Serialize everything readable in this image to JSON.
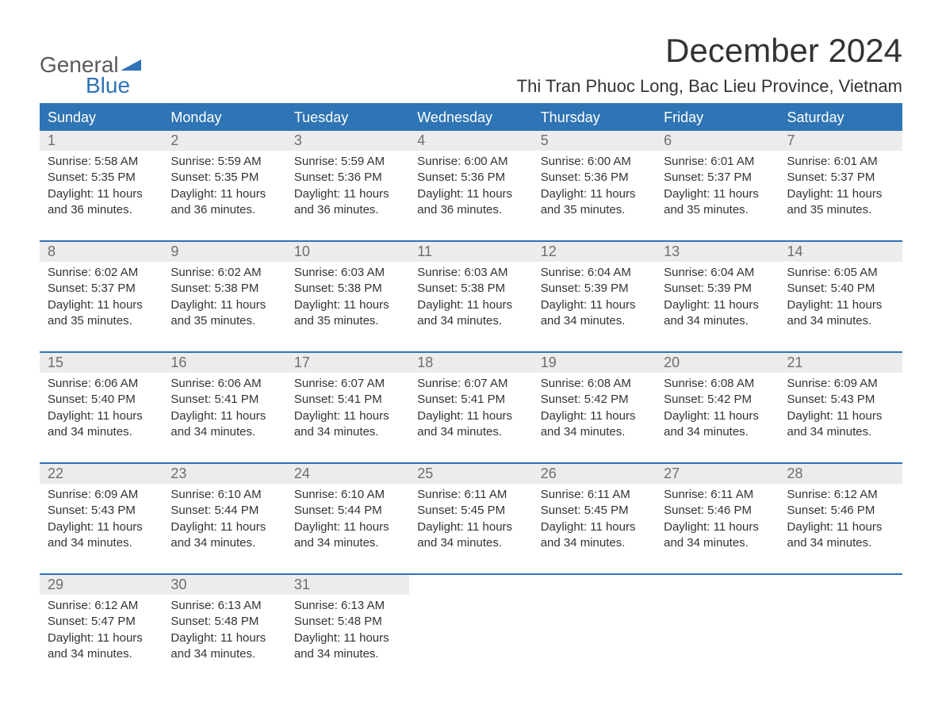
{
  "logo": {
    "word1": "General",
    "word2": "Blue",
    "flag_color": "#2f74b5"
  },
  "title": "December 2024",
  "location": "Thi Tran Phuoc Long, Bac Lieu Province, Vietnam",
  "header_bg": "#2f74b5",
  "header_fg": "#ffffff",
  "daynum_bg": "#ececec",
  "daynum_fg": "#6e6e6e",
  "text_color": "#333333",
  "days_of_week": [
    "Sunday",
    "Monday",
    "Tuesday",
    "Wednesday",
    "Thursday",
    "Friday",
    "Saturday"
  ],
  "weeks": [
    [
      {
        "n": "1",
        "sr": "5:58 AM",
        "ss": "5:35 PM",
        "dl": "11 hours and 36 minutes."
      },
      {
        "n": "2",
        "sr": "5:59 AM",
        "ss": "5:35 PM",
        "dl": "11 hours and 36 minutes."
      },
      {
        "n": "3",
        "sr": "5:59 AM",
        "ss": "5:36 PM",
        "dl": "11 hours and 36 minutes."
      },
      {
        "n": "4",
        "sr": "6:00 AM",
        "ss": "5:36 PM",
        "dl": "11 hours and 36 minutes."
      },
      {
        "n": "5",
        "sr": "6:00 AM",
        "ss": "5:36 PM",
        "dl": "11 hours and 35 minutes."
      },
      {
        "n": "6",
        "sr": "6:01 AM",
        "ss": "5:37 PM",
        "dl": "11 hours and 35 minutes."
      },
      {
        "n": "7",
        "sr": "6:01 AM",
        "ss": "5:37 PM",
        "dl": "11 hours and 35 minutes."
      }
    ],
    [
      {
        "n": "8",
        "sr": "6:02 AM",
        "ss": "5:37 PM",
        "dl": "11 hours and 35 minutes."
      },
      {
        "n": "9",
        "sr": "6:02 AM",
        "ss": "5:38 PM",
        "dl": "11 hours and 35 minutes."
      },
      {
        "n": "10",
        "sr": "6:03 AM",
        "ss": "5:38 PM",
        "dl": "11 hours and 35 minutes."
      },
      {
        "n": "11",
        "sr": "6:03 AM",
        "ss": "5:38 PM",
        "dl": "11 hours and 34 minutes."
      },
      {
        "n": "12",
        "sr": "6:04 AM",
        "ss": "5:39 PM",
        "dl": "11 hours and 34 minutes."
      },
      {
        "n": "13",
        "sr": "6:04 AM",
        "ss": "5:39 PM",
        "dl": "11 hours and 34 minutes."
      },
      {
        "n": "14",
        "sr": "6:05 AM",
        "ss": "5:40 PM",
        "dl": "11 hours and 34 minutes."
      }
    ],
    [
      {
        "n": "15",
        "sr": "6:06 AM",
        "ss": "5:40 PM",
        "dl": "11 hours and 34 minutes."
      },
      {
        "n": "16",
        "sr": "6:06 AM",
        "ss": "5:41 PM",
        "dl": "11 hours and 34 minutes."
      },
      {
        "n": "17",
        "sr": "6:07 AM",
        "ss": "5:41 PM",
        "dl": "11 hours and 34 minutes."
      },
      {
        "n": "18",
        "sr": "6:07 AM",
        "ss": "5:41 PM",
        "dl": "11 hours and 34 minutes."
      },
      {
        "n": "19",
        "sr": "6:08 AM",
        "ss": "5:42 PM",
        "dl": "11 hours and 34 minutes."
      },
      {
        "n": "20",
        "sr": "6:08 AM",
        "ss": "5:42 PM",
        "dl": "11 hours and 34 minutes."
      },
      {
        "n": "21",
        "sr": "6:09 AM",
        "ss": "5:43 PM",
        "dl": "11 hours and 34 minutes."
      }
    ],
    [
      {
        "n": "22",
        "sr": "6:09 AM",
        "ss": "5:43 PM",
        "dl": "11 hours and 34 minutes."
      },
      {
        "n": "23",
        "sr": "6:10 AM",
        "ss": "5:44 PM",
        "dl": "11 hours and 34 minutes."
      },
      {
        "n": "24",
        "sr": "6:10 AM",
        "ss": "5:44 PM",
        "dl": "11 hours and 34 minutes."
      },
      {
        "n": "25",
        "sr": "6:11 AM",
        "ss": "5:45 PM",
        "dl": "11 hours and 34 minutes."
      },
      {
        "n": "26",
        "sr": "6:11 AM",
        "ss": "5:45 PM",
        "dl": "11 hours and 34 minutes."
      },
      {
        "n": "27",
        "sr": "6:11 AM",
        "ss": "5:46 PM",
        "dl": "11 hours and 34 minutes."
      },
      {
        "n": "28",
        "sr": "6:12 AM",
        "ss": "5:46 PM",
        "dl": "11 hours and 34 minutes."
      }
    ],
    [
      {
        "n": "29",
        "sr": "6:12 AM",
        "ss": "5:47 PM",
        "dl": "11 hours and 34 minutes."
      },
      {
        "n": "30",
        "sr": "6:13 AM",
        "ss": "5:48 PM",
        "dl": "11 hours and 34 minutes."
      },
      {
        "n": "31",
        "sr": "6:13 AM",
        "ss": "5:48 PM",
        "dl": "11 hours and 34 minutes."
      },
      null,
      null,
      null,
      null
    ]
  ],
  "labels": {
    "sunrise": "Sunrise: ",
    "sunset": "Sunset: ",
    "daylight": "Daylight: "
  }
}
